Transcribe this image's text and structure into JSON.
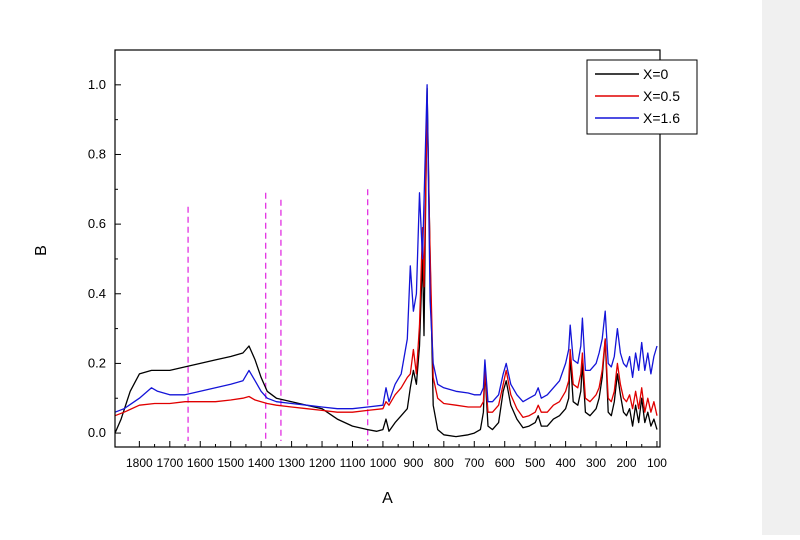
{
  "chart_data": {
    "type": "line",
    "xlabel": "A",
    "ylabel": "B",
    "x_reversed": true,
    "xlim": [
      1880,
      90
    ],
    "ylim": [
      -0.04,
      1.1
    ],
    "x_ticks": [
      1800,
      1700,
      1600,
      1500,
      1400,
      1300,
      1200,
      1100,
      1000,
      900,
      800,
      700,
      600,
      500,
      400,
      300,
      200,
      100
    ],
    "y_ticks": [
      0.0,
      0.2,
      0.4,
      0.6,
      0.8,
      1.0
    ],
    "x_tick_labels": [
      "1800",
      "1700",
      "1600",
      "1500",
      "1400",
      "1300",
      "1200",
      "1100",
      "1000",
      "900",
      "800",
      "700",
      "600",
      "500",
      "400",
      "300",
      "200",
      "100"
    ],
    "y_tick_labels": [
      "0.0",
      "0.2",
      "0.4",
      "0.6",
      "0.8",
      "1.0"
    ],
    "legend_position": "top-right",
    "grid": false,
    "series": [
      {
        "name": "X=0",
        "color": "#000000",
        "points": [
          [
            1880,
            0.0
          ],
          [
            1860,
            0.04
          ],
          [
            1830,
            0.12
          ],
          [
            1800,
            0.17
          ],
          [
            1760,
            0.18
          ],
          [
            1700,
            0.18
          ],
          [
            1650,
            0.19
          ],
          [
            1600,
            0.2
          ],
          [
            1550,
            0.21
          ],
          [
            1500,
            0.22
          ],
          [
            1460,
            0.23
          ],
          [
            1440,
            0.25
          ],
          [
            1420,
            0.21
          ],
          [
            1400,
            0.16
          ],
          [
            1380,
            0.12
          ],
          [
            1350,
            0.1
          ],
          [
            1300,
            0.09
          ],
          [
            1250,
            0.08
          ],
          [
            1200,
            0.07
          ],
          [
            1150,
            0.04
          ],
          [
            1100,
            0.02
          ],
          [
            1050,
            0.01
          ],
          [
            1020,
            0.005
          ],
          [
            1000,
            0.01
          ],
          [
            990,
            0.04
          ],
          [
            980,
            0.005
          ],
          [
            960,
            0.03
          ],
          [
            940,
            0.05
          ],
          [
            920,
            0.07
          ],
          [
            910,
            0.13
          ],
          [
            900,
            0.18
          ],
          [
            890,
            0.14
          ],
          [
            880,
            0.25
          ],
          [
            870,
            0.51
          ],
          [
            865,
            0.28
          ],
          [
            855,
            0.99
          ],
          [
            845,
            0.5
          ],
          [
            835,
            0.08
          ],
          [
            820,
            0.01
          ],
          [
            800,
            -0.005
          ],
          [
            760,
            -0.01
          ],
          [
            720,
            -0.005
          ],
          [
            700,
            0.0
          ],
          [
            680,
            0.01
          ],
          [
            670,
            0.06
          ],
          [
            665,
            0.18
          ],
          [
            655,
            0.02
          ],
          [
            640,
            0.01
          ],
          [
            620,
            0.03
          ],
          [
            605,
            0.12
          ],
          [
            595,
            0.15
          ],
          [
            580,
            0.08
          ],
          [
            560,
            0.04
          ],
          [
            540,
            0.015
          ],
          [
            520,
            0.02
          ],
          [
            500,
            0.03
          ],
          [
            490,
            0.05
          ],
          [
            480,
            0.02
          ],
          [
            460,
            0.02
          ],
          [
            440,
            0.04
          ],
          [
            420,
            0.05
          ],
          [
            400,
            0.07
          ],
          [
            390,
            0.1
          ],
          [
            385,
            0.22
          ],
          [
            375,
            0.09
          ],
          [
            360,
            0.08
          ],
          [
            350,
            0.12
          ],
          [
            345,
            0.2
          ],
          [
            335,
            0.06
          ],
          [
            320,
            0.05
          ],
          [
            300,
            0.07
          ],
          [
            290,
            0.1
          ],
          [
            280,
            0.16
          ],
          [
            270,
            0.27
          ],
          [
            260,
            0.06
          ],
          [
            250,
            0.05
          ],
          [
            240,
            0.09
          ],
          [
            230,
            0.17
          ],
          [
            220,
            0.11
          ],
          [
            210,
            0.06
          ],
          [
            200,
            0.05
          ],
          [
            190,
            0.07
          ],
          [
            180,
            0.02
          ],
          [
            170,
            0.08
          ],
          [
            160,
            0.03
          ],
          [
            150,
            0.1
          ],
          [
            140,
            0.03
          ],
          [
            130,
            0.06
          ],
          [
            120,
            0.02
          ],
          [
            110,
            0.04
          ],
          [
            100,
            0.01
          ]
        ]
      },
      {
        "name": "X=0.5",
        "color": "#e00000",
        "points": [
          [
            1880,
            0.05
          ],
          [
            1850,
            0.06
          ],
          [
            1800,
            0.08
          ],
          [
            1750,
            0.085
          ],
          [
            1700,
            0.085
          ],
          [
            1650,
            0.09
          ],
          [
            1600,
            0.09
          ],
          [
            1550,
            0.09
          ],
          [
            1500,
            0.095
          ],
          [
            1460,
            0.1
          ],
          [
            1440,
            0.105
          ],
          [
            1420,
            0.095
          ],
          [
            1400,
            0.09
          ],
          [
            1380,
            0.085
          ],
          [
            1350,
            0.08
          ],
          [
            1300,
            0.075
          ],
          [
            1250,
            0.07
          ],
          [
            1200,
            0.065
          ],
          [
            1150,
            0.06
          ],
          [
            1100,
            0.06
          ],
          [
            1050,
            0.065
          ],
          [
            1000,
            0.07
          ],
          [
            990,
            0.09
          ],
          [
            980,
            0.08
          ],
          [
            960,
            0.11
          ],
          [
            940,
            0.13
          ],
          [
            920,
            0.16
          ],
          [
            910,
            0.17
          ],
          [
            900,
            0.24
          ],
          [
            890,
            0.17
          ],
          [
            880,
            0.31
          ],
          [
            870,
            0.59
          ],
          [
            865,
            0.42
          ],
          [
            855,
            0.93
          ],
          [
            845,
            0.52
          ],
          [
            835,
            0.16
          ],
          [
            820,
            0.1
          ],
          [
            800,
            0.085
          ],
          [
            760,
            0.08
          ],
          [
            720,
            0.075
          ],
          [
            700,
            0.075
          ],
          [
            680,
            0.075
          ],
          [
            670,
            0.09
          ],
          [
            665,
            0.18
          ],
          [
            655,
            0.06
          ],
          [
            640,
            0.06
          ],
          [
            620,
            0.08
          ],
          [
            605,
            0.14
          ],
          [
            595,
            0.18
          ],
          [
            580,
            0.11
          ],
          [
            560,
            0.07
          ],
          [
            540,
            0.045
          ],
          [
            520,
            0.05
          ],
          [
            500,
            0.06
          ],
          [
            490,
            0.08
          ],
          [
            480,
            0.06
          ],
          [
            460,
            0.06
          ],
          [
            440,
            0.08
          ],
          [
            420,
            0.09
          ],
          [
            400,
            0.12
          ],
          [
            390,
            0.15
          ],
          [
            385,
            0.24
          ],
          [
            375,
            0.14
          ],
          [
            360,
            0.13
          ],
          [
            350,
            0.17
          ],
          [
            345,
            0.23
          ],
          [
            335,
            0.1
          ],
          [
            320,
            0.09
          ],
          [
            300,
            0.11
          ],
          [
            290,
            0.13
          ],
          [
            280,
            0.18
          ],
          [
            270,
            0.27
          ],
          [
            260,
            0.1
          ],
          [
            250,
            0.09
          ],
          [
            240,
            0.12
          ],
          [
            230,
            0.2
          ],
          [
            220,
            0.14
          ],
          [
            210,
            0.1
          ],
          [
            200,
            0.09
          ],
          [
            190,
            0.11
          ],
          [
            180,
            0.07
          ],
          [
            170,
            0.12
          ],
          [
            160,
            0.07
          ],
          [
            150,
            0.13
          ],
          [
            140,
            0.06
          ],
          [
            130,
            0.1
          ],
          [
            120,
            0.06
          ],
          [
            110,
            0.09
          ],
          [
            100,
            0.05
          ]
        ]
      },
      {
        "name": "X=1.6",
        "color": "#1414d8",
        "points": [
          [
            1880,
            0.06
          ],
          [
            1850,
            0.07
          ],
          [
            1800,
            0.1
          ],
          [
            1760,
            0.13
          ],
          [
            1740,
            0.12
          ],
          [
            1700,
            0.11
          ],
          [
            1650,
            0.11
          ],
          [
            1600,
            0.12
          ],
          [
            1550,
            0.13
          ],
          [
            1500,
            0.14
          ],
          [
            1460,
            0.15
          ],
          [
            1440,
            0.18
          ],
          [
            1420,
            0.15
          ],
          [
            1400,
            0.12
          ],
          [
            1380,
            0.1
          ],
          [
            1350,
            0.09
          ],
          [
            1300,
            0.085
          ],
          [
            1250,
            0.08
          ],
          [
            1200,
            0.075
          ],
          [
            1150,
            0.07
          ],
          [
            1100,
            0.07
          ],
          [
            1050,
            0.075
          ],
          [
            1000,
            0.08
          ],
          [
            990,
            0.13
          ],
          [
            980,
            0.09
          ],
          [
            960,
            0.14
          ],
          [
            940,
            0.17
          ],
          [
            920,
            0.27
          ],
          [
            910,
            0.48
          ],
          [
            900,
            0.35
          ],
          [
            890,
            0.4
          ],
          [
            880,
            0.69
          ],
          [
            870,
            0.5
          ],
          [
            855,
            1.0
          ],
          [
            845,
            0.38
          ],
          [
            835,
            0.2
          ],
          [
            820,
            0.14
          ],
          [
            800,
            0.13
          ],
          [
            760,
            0.12
          ],
          [
            720,
            0.115
          ],
          [
            700,
            0.11
          ],
          [
            680,
            0.11
          ],
          [
            670,
            0.13
          ],
          [
            665,
            0.21
          ],
          [
            655,
            0.09
          ],
          [
            640,
            0.09
          ],
          [
            620,
            0.11
          ],
          [
            605,
            0.17
          ],
          [
            595,
            0.2
          ],
          [
            580,
            0.14
          ],
          [
            560,
            0.11
          ],
          [
            540,
            0.09
          ],
          [
            520,
            0.1
          ],
          [
            500,
            0.11
          ],
          [
            490,
            0.13
          ],
          [
            480,
            0.1
          ],
          [
            460,
            0.11
          ],
          [
            440,
            0.13
          ],
          [
            420,
            0.15
          ],
          [
            400,
            0.2
          ],
          [
            390,
            0.24
          ],
          [
            385,
            0.31
          ],
          [
            375,
            0.21
          ],
          [
            360,
            0.2
          ],
          [
            350,
            0.25
          ],
          [
            345,
            0.33
          ],
          [
            335,
            0.18
          ],
          [
            320,
            0.18
          ],
          [
            300,
            0.2
          ],
          [
            290,
            0.23
          ],
          [
            280,
            0.27
          ],
          [
            270,
            0.35
          ],
          [
            260,
            0.2
          ],
          [
            250,
            0.19
          ],
          [
            240,
            0.22
          ],
          [
            230,
            0.3
          ],
          [
            220,
            0.23
          ],
          [
            210,
            0.2
          ],
          [
            200,
            0.19
          ],
          [
            190,
            0.22
          ],
          [
            180,
            0.16
          ],
          [
            170,
            0.23
          ],
          [
            160,
            0.18
          ],
          [
            150,
            0.26
          ],
          [
            140,
            0.18
          ],
          [
            130,
            0.23
          ],
          [
            120,
            0.17
          ],
          [
            110,
            0.22
          ],
          [
            100,
            0.25
          ]
        ]
      }
    ],
    "reference_lines": [
      {
        "x": 1640,
        "y_top": 0.65,
        "color": "#e020e0"
      },
      {
        "x": 1385,
        "y_top": 0.69,
        "color": "#e020e0"
      },
      {
        "x": 1335,
        "y_top": 0.67,
        "color": "#e020e0"
      },
      {
        "x": 1050,
        "y_top": 0.7,
        "color": "#e020e0"
      }
    ]
  }
}
